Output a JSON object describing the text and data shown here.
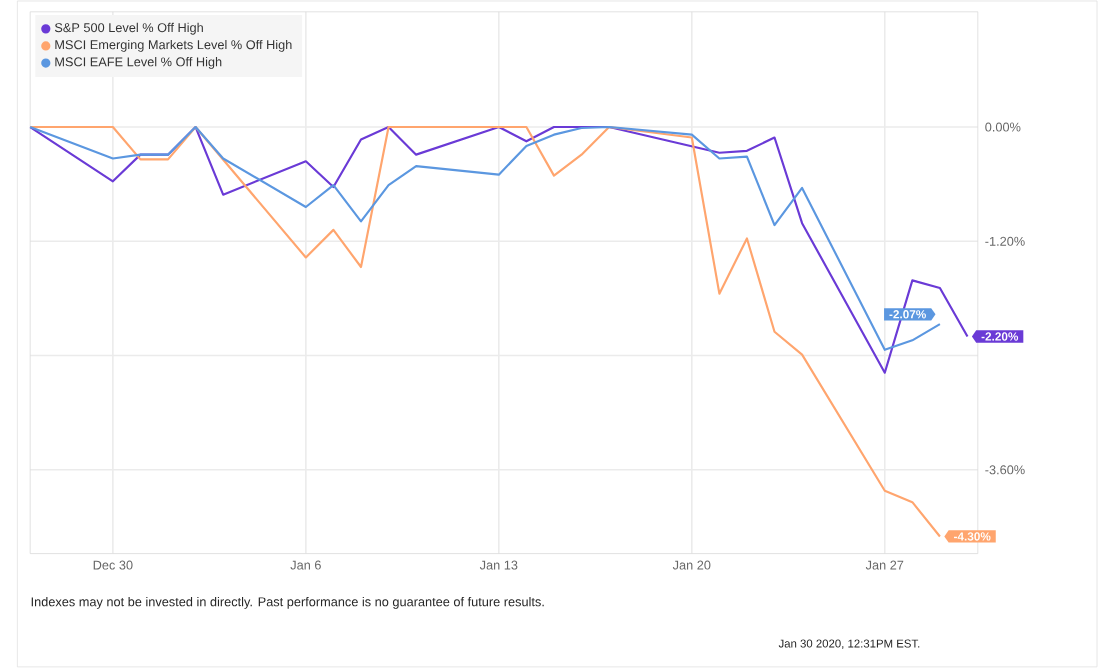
{
  "chart_data": {
    "type": "line",
    "xlim": [
      "2019-12-27",
      "2020-01-30T09:00"
    ],
    "xticks": [
      {
        "value": "2019-12-30",
        "label": "Dec 30"
      },
      {
        "value": "2020-01-06",
        "label": "Jan 6"
      },
      {
        "value": "2020-01-13",
        "label": "Jan 13"
      },
      {
        "value": "2020-01-20",
        "label": "Jan 20"
      },
      {
        "value": "2020-01-27",
        "label": "Jan 27"
      }
    ],
    "ylim": [
      -4.48,
      1.21
    ],
    "yticks": [
      {
        "value": 0,
        "label": "0.00%"
      },
      {
        "value": -1.2,
        "label": "-1.20%"
      },
      {
        "value": -2.4,
        "label": null
      },
      {
        "value": -3.6,
        "label": "-3.60%"
      }
    ],
    "grid": true,
    "legend": "top left",
    "marker": "none",
    "line_style": "solid",
    "series": [
      {
        "name": "S&P 500 Level % Off High",
        "color": "#6a3ad6",
        "x": [
          "2019-12-27",
          "2019-12-30",
          "2019-12-31",
          "2020-01-01",
          "2020-01-02",
          "2020-01-03",
          "2020-01-06",
          "2020-01-07",
          "2020-01-08",
          "2020-01-09",
          "2020-01-10",
          "2020-01-13",
          "2020-01-14",
          "2020-01-15",
          "2020-01-16",
          "2020-01-17",
          "2020-01-21",
          "2020-01-22",
          "2020-01-23",
          "2020-01-24",
          "2020-01-27",
          "2020-01-28",
          "2020-01-29",
          "2020-01-30"
        ],
        "values": [
          0,
          -0.57,
          -0.29,
          -0.29,
          0,
          -0.71,
          -0.36,
          -0.63,
          -0.13,
          0,
          -0.29,
          0,
          -0.15,
          0,
          0,
          0,
          -0.27,
          -0.25,
          -0.11,
          -1.01,
          -2.58,
          -1.61,
          -1.69,
          -2.2
        ],
        "value_labels": [
          null,
          null,
          null,
          null,
          null,
          null,
          null,
          null,
          null,
          null,
          null,
          null,
          null,
          null,
          null,
          null,
          null,
          null,
          null,
          null,
          null,
          null,
          null,
          "-2.20%"
        ]
      },
      {
        "name": "MSCI Emerging Markets Level % Off High",
        "color": "#ffa56e",
        "x": [
          "2019-12-27",
          "2019-12-30",
          "2019-12-31",
          "2020-01-01",
          "2020-01-02",
          "2020-01-06",
          "2020-01-07",
          "2020-01-08",
          "2020-01-09",
          "2020-01-14",
          "2020-01-15",
          "2020-01-16",
          "2020-01-17",
          "2020-01-20",
          "2020-01-21",
          "2020-01-22",
          "2020-01-23",
          "2020-01-24",
          "2020-01-27",
          "2020-01-28",
          "2020-01-29"
        ],
        "values": [
          0,
          0,
          -0.34,
          -0.34,
          0,
          -1.37,
          -1.08,
          -1.47,
          0,
          0,
          -0.51,
          -0.29,
          0,
          -0.11,
          -1.75,
          -1.17,
          -2.15,
          -2.39,
          -3.82,
          -3.94,
          -4.3
        ],
        "value_labels": [
          null,
          null,
          null,
          null,
          null,
          null,
          null,
          null,
          null,
          null,
          null,
          null,
          null,
          null,
          null,
          null,
          null,
          null,
          null,
          null,
          "-4.30%"
        ]
      },
      {
        "name": "MSCI EAFE Level % Off High",
        "color": "#5b97e0",
        "x": [
          "2019-12-27",
          "2019-12-30",
          "2019-12-31",
          "2020-01-01",
          "2020-01-02",
          "2020-01-03",
          "2020-01-06",
          "2020-01-07",
          "2020-01-08",
          "2020-01-09",
          "2020-01-10",
          "2020-01-13",
          "2020-01-14",
          "2020-01-15",
          "2020-01-16",
          "2020-01-17",
          "2020-01-20",
          "2020-01-21",
          "2020-01-22",
          "2020-01-23",
          "2020-01-24",
          "2020-01-27",
          "2020-01-28",
          "2020-01-29"
        ],
        "values": [
          0,
          -0.33,
          -0.29,
          -0.29,
          0,
          -0.33,
          -0.84,
          -0.61,
          -0.99,
          -0.61,
          -0.41,
          -0.5,
          -0.2,
          -0.08,
          -0.01,
          0,
          -0.08,
          -0.33,
          -0.31,
          -1.03,
          -0.64,
          -2.34,
          -2.24,
          -2.07
        ],
        "value_labels": [
          null,
          null,
          null,
          null,
          null,
          null,
          null,
          null,
          null,
          null,
          null,
          null,
          null,
          null,
          null,
          null,
          null,
          null,
          null,
          null,
          null,
          null,
          null,
          "-2.07%"
        ]
      }
    ],
    "annotations": [
      "Indexes may not be invested in directly. Past performance is no guarantee of future results.",
      "Jan 30 2020, 12:31PM EST."
    ]
  }
}
